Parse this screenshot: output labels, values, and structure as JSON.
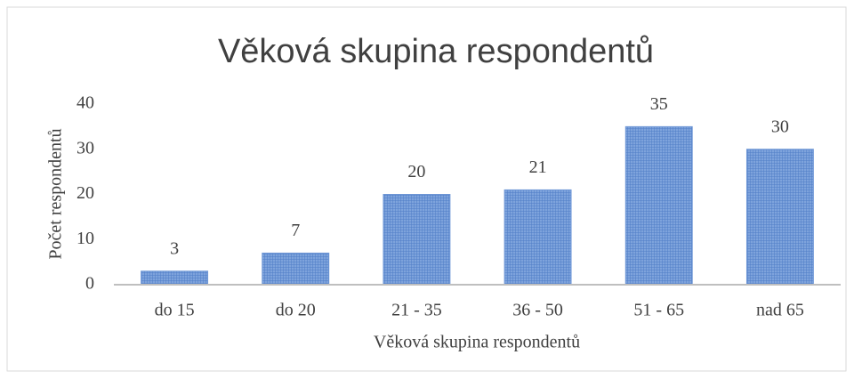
{
  "chart_data": {
    "type": "bar",
    "title": "Věková skupina respondentů",
    "x_label": "Věková skupina respondentů",
    "y_label": "Počet respondentů",
    "categories": [
      "do 15",
      "do 20",
      "21 - 35",
      "36 - 50",
      "51 - 65",
      "nad 65"
    ],
    "values": [
      3,
      7,
      20,
      21,
      35,
      30
    ],
    "color": "#6f97d6",
    "ylim": [
      0,
      40
    ],
    "yticks": [
      0,
      10,
      20,
      30,
      40
    ],
    "grid": false
  }
}
